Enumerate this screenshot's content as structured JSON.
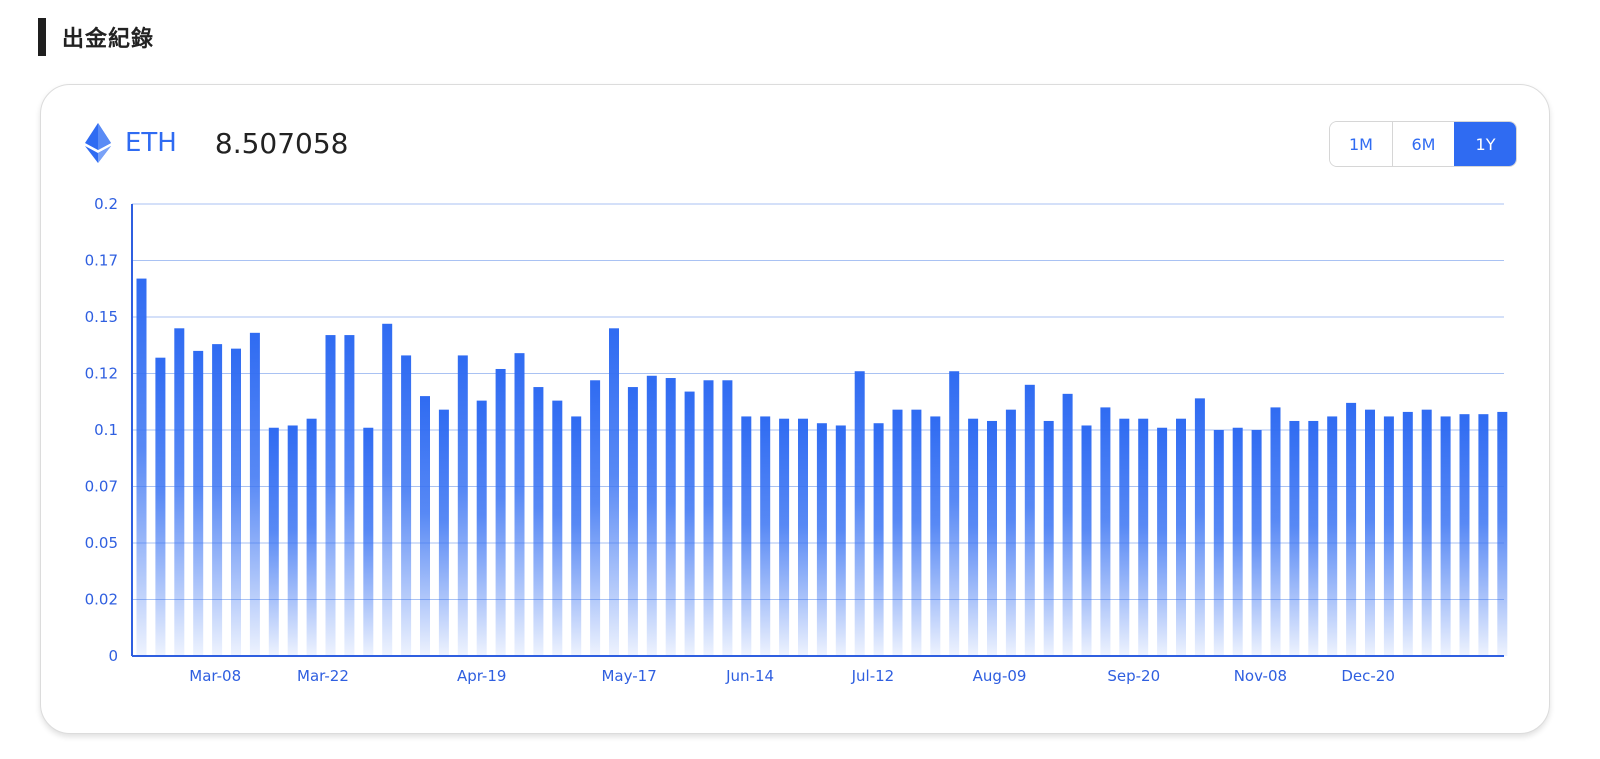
{
  "section": {
    "title": "出金紀錄"
  },
  "coin": {
    "icon": "ethereum-icon",
    "symbol": "ETH",
    "amount": "8.507058"
  },
  "range": {
    "buttons": [
      "1M",
      "6M",
      "1Y"
    ],
    "active": "1Y"
  },
  "colors": {
    "accent": "#2f6bf2",
    "grid": "#a9c2f3",
    "axis": "#2f5fe0"
  },
  "chart_data": {
    "type": "bar",
    "title": "",
    "xlabel": "",
    "ylabel": "",
    "ylim": [
      0,
      0.2
    ],
    "yticks": [
      "0",
      "0.02",
      "0.05",
      "0.07",
      "0.1",
      "0.12",
      "0.15",
      "0.17",
      "0.2"
    ],
    "xtick_labels": [
      "Mar-08",
      "Mar-22",
      "Apr-19",
      "May-17",
      "Jun-14",
      "Jul-12",
      "Aug-09",
      "Sep-20",
      "Nov-08",
      "Dec-20"
    ],
    "xtick_bar_index": [
      3.9,
      9.6,
      18.0,
      25.8,
      32.2,
      38.7,
      45.4,
      52.5,
      59.2,
      64.9
    ],
    "grid": true,
    "legend": "none",
    "values": [
      0.167,
      0.132,
      0.145,
      0.135,
      0.138,
      0.136,
      0.143,
      0.101,
      0.102,
      0.105,
      0.142,
      0.142,
      0.101,
      0.147,
      0.133,
      0.115,
      0.109,
      0.133,
      0.113,
      0.127,
      0.134,
      0.119,
      0.113,
      0.106,
      0.122,
      0.145,
      0.119,
      0.124,
      0.123,
      0.117,
      0.122,
      0.122,
      0.106,
      0.106,
      0.105,
      0.105,
      0.103,
      0.102,
      0.126,
      0.103,
      0.109,
      0.109,
      0.106,
      0.126,
      0.105,
      0.104,
      0.109,
      0.12,
      0.104,
      0.116,
      0.102,
      0.11,
      0.105,
      0.105,
      0.101,
      0.105,
      0.114,
      0.1,
      0.101,
      0.1,
      0.11,
      0.104,
      0.104,
      0.106,
      0.112,
      0.109,
      0.106,
      0.108,
      0.109,
      0.106,
      0.107,
      0.107,
      0.108
    ]
  }
}
